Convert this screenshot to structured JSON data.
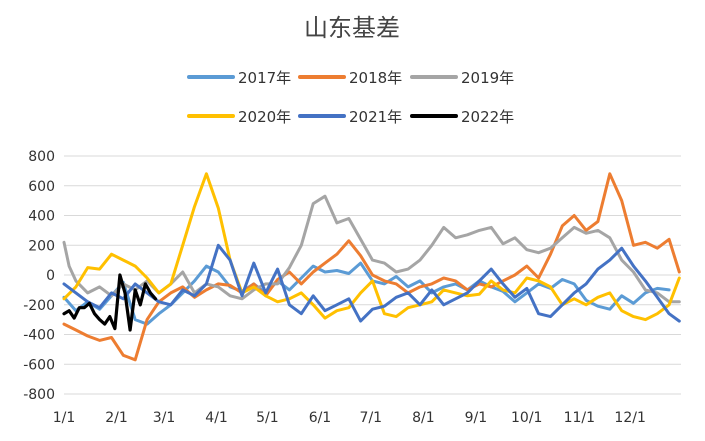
{
  "chart_data": {
    "type": "line",
    "title": "山东基差",
    "xlabel": "",
    "ylabel": "",
    "ylim": [
      -800,
      800
    ],
    "yticks": [
      800,
      600,
      400,
      200,
      0,
      -200,
      -400,
      -600,
      -800
    ],
    "ytick_labels": [
      "800",
      "600",
      "400",
      "200",
      "0",
      "-200",
      "-400",
      "-600",
      "-800"
    ],
    "xticks": [
      "1/1",
      "2/1",
      "3/1",
      "4/1",
      "5/1",
      "6/1",
      "7/1",
      "8/1",
      "9/1",
      "10/1",
      "11/1",
      "12/1"
    ],
    "x_unit": "day of year (1 = Jan 1)",
    "grid": "horizontal",
    "legend_position": "top",
    "series": [
      {
        "name": "2017年",
        "color": "#5B9BD5",
        "x": [
          1,
          8,
          15,
          22,
          29,
          36,
          43,
          50,
          57,
          64,
          71,
          78,
          85,
          92,
          99,
          106,
          113,
          120,
          127,
          134,
          141,
          148,
          155,
          162,
          169,
          176,
          183,
          190,
          197,
          204,
          211,
          218,
          225,
          232,
          239,
          246,
          253,
          260,
          267,
          274,
          281,
          288,
          295,
          302,
          309,
          316,
          323,
          330,
          337,
          344,
          351,
          358
        ],
        "y": [
          -150,
          -240,
          -180,
          -230,
          -140,
          -50,
          -300,
          -330,
          -260,
          -200,
          -120,
          -40,
          60,
          20,
          -80,
          -110,
          -60,
          -120,
          -40,
          -100,
          -20,
          60,
          20,
          30,
          10,
          80,
          -40,
          -60,
          -10,
          -80,
          -40,
          -120,
          -80,
          -60,
          -100,
          -40,
          -80,
          -110,
          -180,
          -120,
          -60,
          -90,
          -30,
          -60,
          -170,
          -210,
          -230,
          -140,
          -190,
          -120,
          -90,
          -100
        ]
      },
      {
        "name": "2018年",
        "color": "#ED7D31",
        "x": [
          1,
          8,
          15,
          22,
          29,
          36,
          43,
          50,
          57,
          64,
          71,
          78,
          85,
          92,
          99,
          106,
          113,
          120,
          127,
          134,
          141,
          148,
          155,
          162,
          169,
          176,
          183,
          190,
          197,
          204,
          211,
          218,
          225,
          232,
          239,
          246,
          253,
          260,
          267,
          274,
          281,
          288,
          295,
          302,
          309,
          316,
          323,
          330,
          337,
          344,
          351,
          358,
          364
        ],
        "y": [
          -330,
          -370,
          -410,
          -440,
          -420,
          -540,
          -570,
          -300,
          -180,
          -120,
          -80,
          -150,
          -100,
          -60,
          -70,
          -120,
          -60,
          -140,
          -30,
          20,
          -60,
          20,
          80,
          140,
          230,
          130,
          0,
          -40,
          -60,
          -120,
          -80,
          -60,
          -20,
          -40,
          -100,
          -60,
          -80,
          -40,
          0,
          60,
          -20,
          140,
          330,
          400,
          300,
          360,
          680,
          500,
          200,
          220,
          180,
          240,
          20
        ]
      },
      {
        "name": "2019年",
        "color": "#A5A5A5",
        "x": [
          1,
          4,
          8,
          15,
          22,
          29,
          36,
          43,
          50,
          57,
          64,
          71,
          78,
          85,
          92,
          99,
          106,
          113,
          120,
          127,
          134,
          141,
          148,
          155,
          162,
          169,
          176,
          183,
          190,
          197,
          204,
          211,
          218,
          225,
          232,
          239,
          246,
          253,
          260,
          267,
          274,
          281,
          288,
          295,
          302,
          309,
          316,
          323,
          330,
          337,
          344,
          351,
          358,
          364
        ],
        "y": [
          220,
          60,
          -40,
          -120,
          -80,
          -140,
          -60,
          -100,
          -40,
          -120,
          -60,
          20,
          -120,
          -60,
          -80,
          -140,
          -160,
          -100,
          -60,
          -60,
          50,
          200,
          480,
          530,
          350,
          380,
          240,
          100,
          80,
          20,
          40,
          100,
          200,
          320,
          250,
          270,
          300,
          320,
          210,
          250,
          170,
          150,
          180,
          250,
          320,
          280,
          300,
          250,
          100,
          20,
          -100,
          -120,
          -180,
          -180
        ]
      },
      {
        "name": "2020年",
        "color": "#FFC000",
        "x": [
          1,
          8,
          15,
          22,
          29,
          36,
          43,
          50,
          57,
          64,
          71,
          78,
          85,
          92,
          99,
          106,
          113,
          120,
          127,
          134,
          141,
          148,
          155,
          162,
          169,
          176,
          183,
          190,
          197,
          204,
          211,
          218,
          225,
          232,
          239,
          246,
          253,
          260,
          267,
          274,
          281,
          288,
          295,
          302,
          309,
          316,
          323,
          330,
          337,
          344,
          351,
          358,
          364
        ],
        "y": [
          -160,
          -80,
          50,
          40,
          140,
          100,
          60,
          -20,
          -120,
          -60,
          200,
          460,
          680,
          450,
          100,
          -120,
          -80,
          -140,
          -180,
          -160,
          -120,
          -200,
          -290,
          -240,
          -220,
          -120,
          -40,
          -260,
          -280,
          -220,
          -200,
          -180,
          -100,
          -120,
          -140,
          -130,
          -40,
          -100,
          -120,
          -20,
          -40,
          -80,
          -200,
          -160,
          -200,
          -150,
          -120,
          -240,
          -280,
          -300,
          -260,
          -200,
          -20
        ]
      },
      {
        "name": "2021年",
        "color": "#4472C4",
        "x": [
          1,
          8,
          15,
          22,
          29,
          36,
          43,
          50,
          57,
          64,
          71,
          78,
          85,
          92,
          99,
          106,
          113,
          120,
          127,
          134,
          141,
          148,
          155,
          162,
          169,
          176,
          183,
          190,
          197,
          204,
          211,
          218,
          225,
          232,
          239,
          246,
          253,
          260,
          267,
          274,
          281,
          288,
          295,
          302,
          309,
          316,
          323,
          330,
          337,
          344,
          351,
          358,
          364
        ],
        "y": [
          -60,
          -120,
          -180,
          -220,
          -120,
          -160,
          -60,
          -120,
          -180,
          -200,
          -100,
          -140,
          -60,
          200,
          100,
          -140,
          80,
          -120,
          40,
          -200,
          -260,
          -140,
          -240,
          -200,
          -160,
          -310,
          -230,
          -210,
          -150,
          -120,
          -200,
          -100,
          -200,
          -160,
          -120,
          -40,
          40,
          -60,
          -150,
          -90,
          -260,
          -280,
          -200,
          -120,
          -60,
          40,
          100,
          180,
          60,
          -40,
          -150,
          -260,
          -310
        ]
      },
      {
        "name": "2022年",
        "color": "#000000",
        "x": [
          1,
          4,
          7,
          10,
          13,
          16,
          19,
          22,
          25,
          28,
          31,
          34,
          37,
          40,
          43,
          46,
          49,
          52,
          55
        ],
        "y": [
          -260,
          -240,
          -290,
          -220,
          -220,
          -190,
          -260,
          -300,
          -330,
          -280,
          -360,
          0,
          -120,
          -370,
          -100,
          -200,
          -60,
          -120,
          -160
        ]
      }
    ]
  }
}
